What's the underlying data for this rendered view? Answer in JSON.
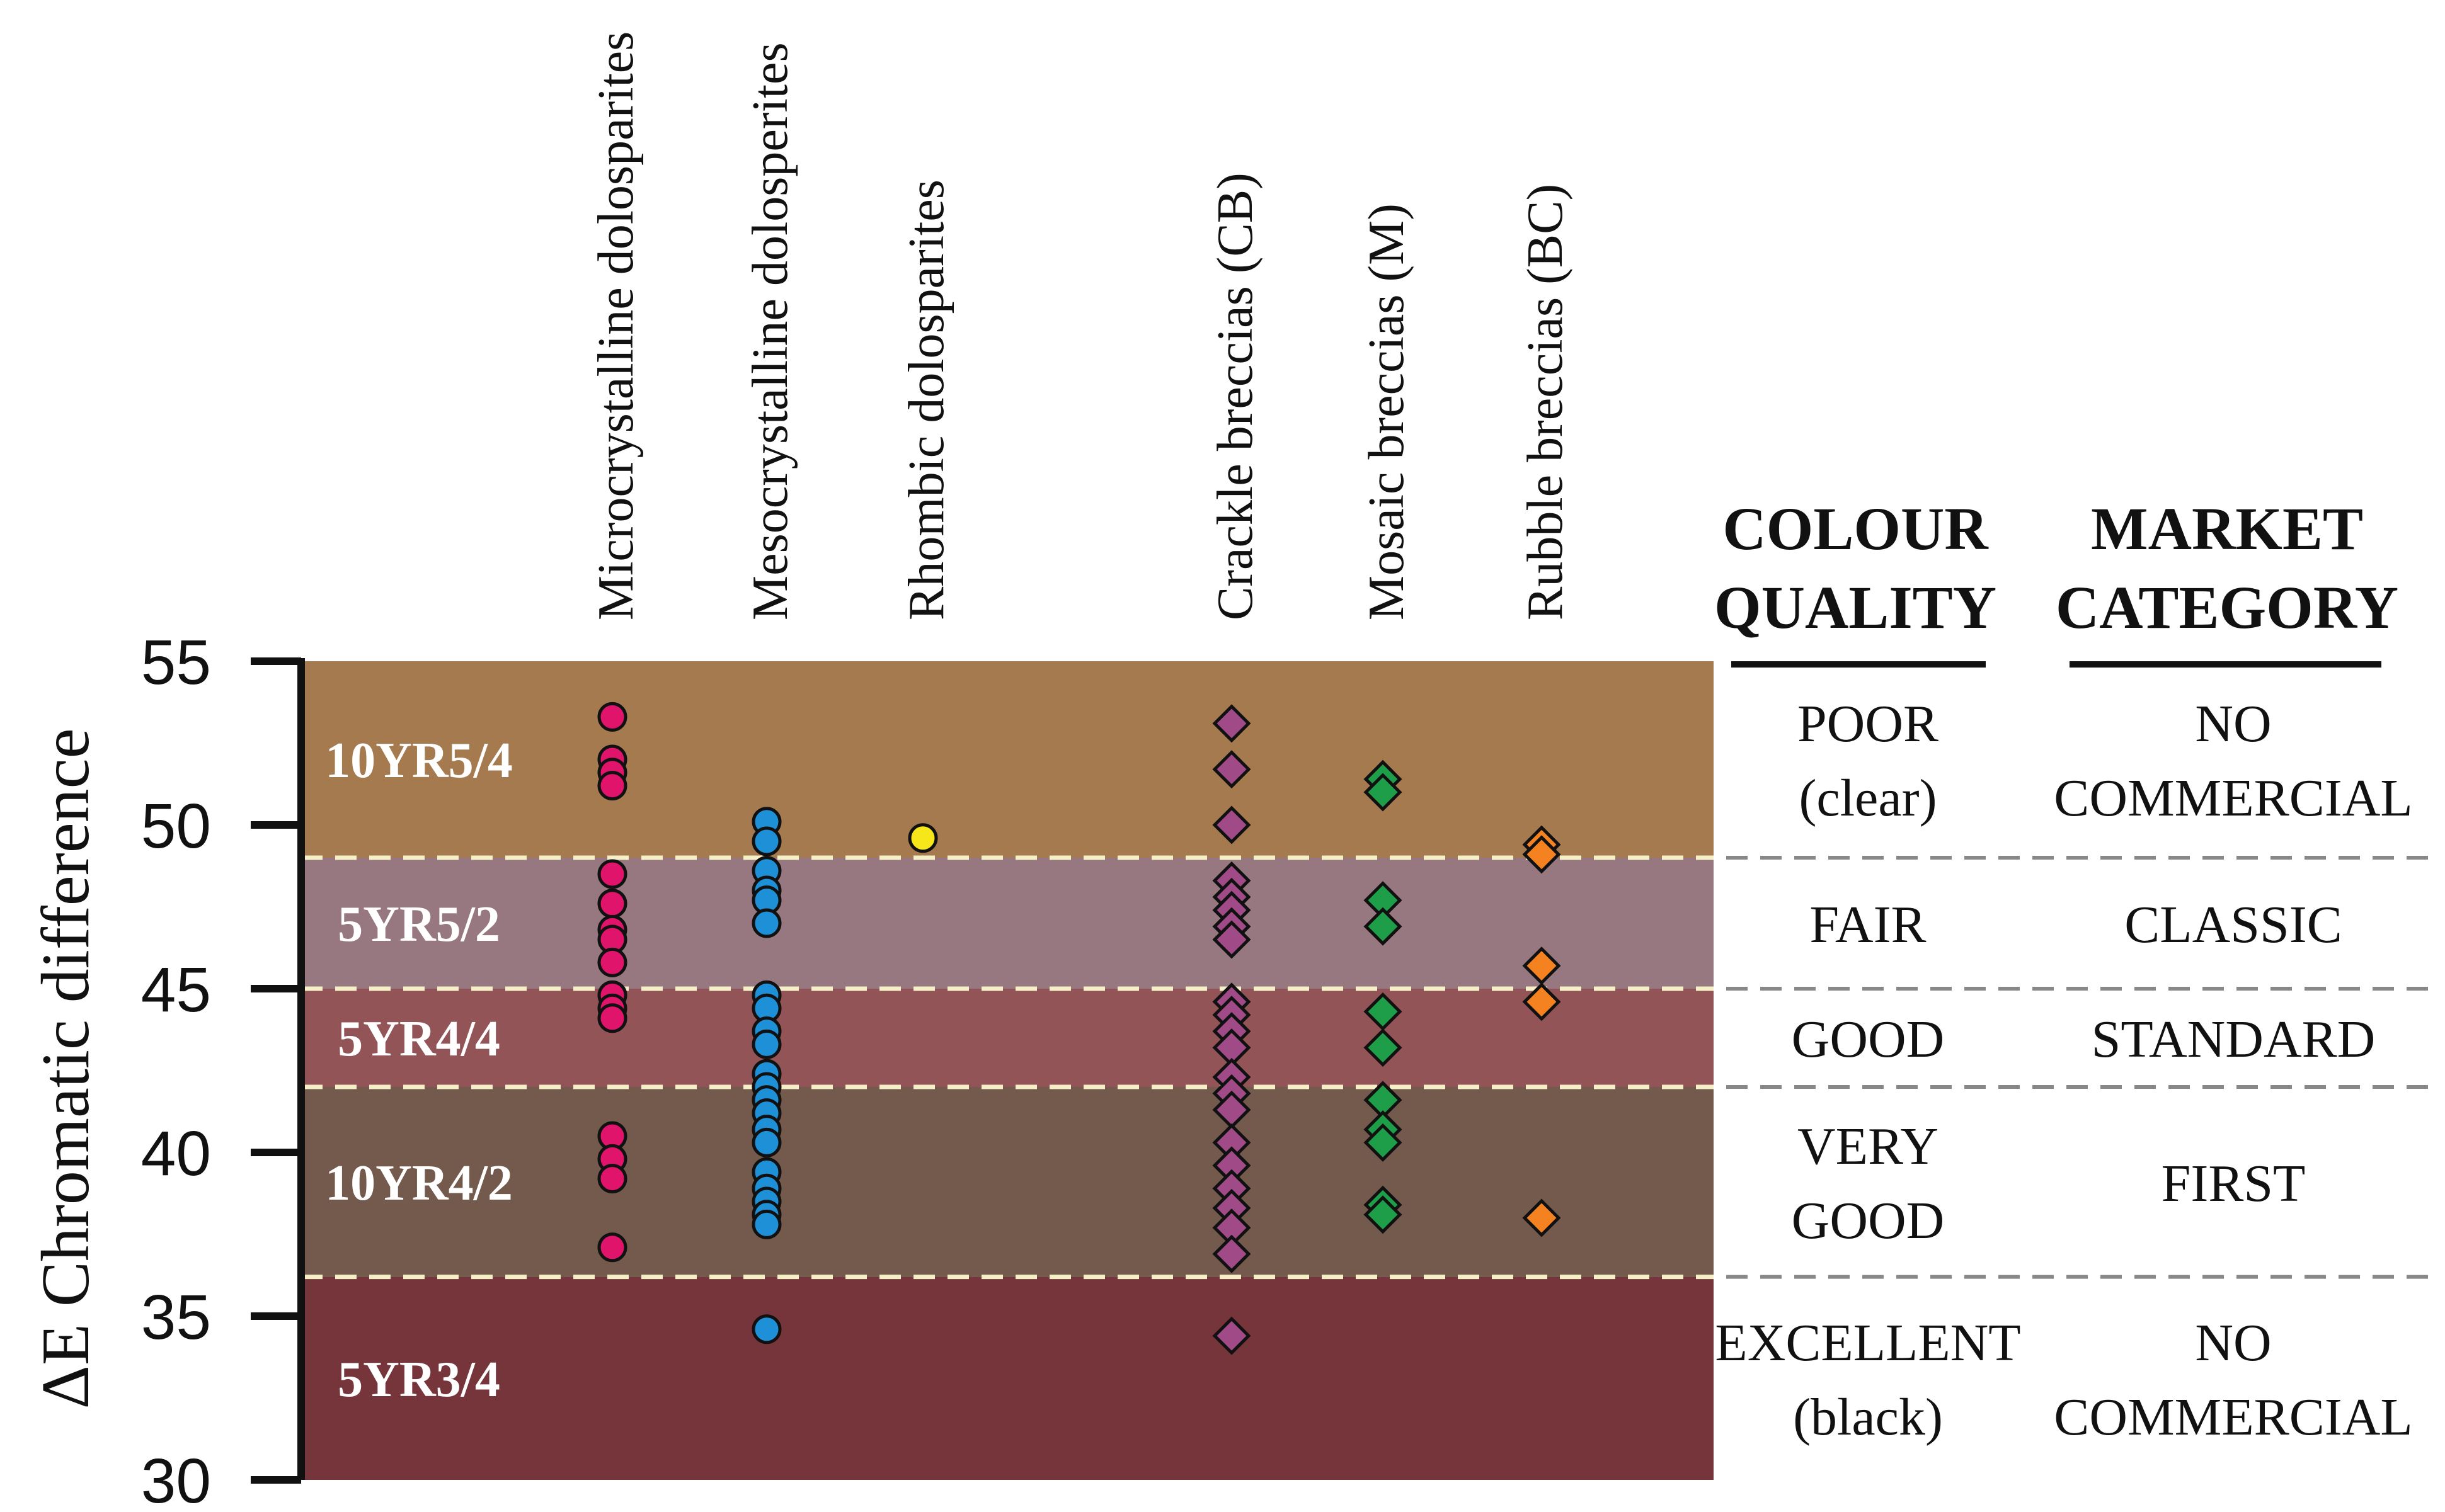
{
  "chart_data": {
    "type": "scatter",
    "ylabel": "ΔE  Chromatic difference",
    "ylim": [
      30,
      55
    ],
    "yticks": [
      "30",
      "35",
      "40",
      "45",
      "50",
      "55"
    ],
    "bands": [
      {
        "label": "10YR5/4",
        "from": 49,
        "to": 55,
        "color": "#a57a4f",
        "quality": [
          "POOR",
          "(clear)"
        ],
        "market": [
          "NO",
          "COMMERCIAL"
        ]
      },
      {
        "label": "5YR5/2",
        "from": 45,
        "to": 49,
        "color": "#987880",
        "quality": [
          "FAIR"
        ],
        "market": [
          "CLASSIC"
        ]
      },
      {
        "label": "5YR4/4",
        "from": 42,
        "to": 45,
        "color": "#935457",
        "quality": [
          "GOOD"
        ],
        "market": [
          "STANDARD"
        ]
      },
      {
        "label": "10YR4/2",
        "from": 36.2,
        "to": 42,
        "color": "#745a4c",
        "quality": [
          "VERY",
          "GOOD"
        ],
        "market": [
          "FIRST"
        ]
      },
      {
        "label": "5YR3/4",
        "from": 30,
        "to": 36.2,
        "color": "#76353b",
        "quality": [
          "EXCELLENT",
          "(black)"
        ],
        "market": [
          "NO",
          "COMMERCIAL"
        ]
      }
    ],
    "quality_header": [
      "COLOUR",
      "QUALITY"
    ],
    "market_header": [
      "MARKET",
      "CATEGORY"
    ],
    "series": [
      {
        "name": "Microcrystalline dolosparites",
        "marker": "circle",
        "color": "#e0146a",
        "values": [
          53.3,
          52.0,
          51.6,
          51.2,
          48.5,
          47.6,
          46.8,
          46.5,
          45.8,
          44.8,
          44.4,
          44.1,
          40.5,
          39.8,
          39.2,
          37.1
        ]
      },
      {
        "name": "Mesocrystalline dolosperites",
        "marker": "circle",
        "color": "#1e90d8",
        "values": [
          50.1,
          49.5,
          48.6,
          48.0,
          47.7,
          47.0,
          44.8,
          44.4,
          43.7,
          43.3,
          42.4,
          42.0,
          41.6,
          41.2,
          40.7,
          40.3,
          39.4,
          38.9,
          38.5,
          38.1,
          37.8,
          34.6
        ]
      },
      {
        "name": "Rhombic dolosparites",
        "marker": "circle",
        "color": "#f6e71b",
        "values": [
          49.6
        ]
      },
      {
        "name": "Crackle breccias (CB)",
        "marker": "diamond",
        "color": "#a04b88",
        "values": [
          53.1,
          51.7,
          50.0,
          48.3,
          47.8,
          47.4,
          46.9,
          46.5,
          44.6,
          44.2,
          43.7,
          43.2,
          42.3,
          41.8,
          41.3,
          40.3,
          39.6,
          38.9,
          38.3,
          37.7,
          36.9,
          34.4
        ]
      },
      {
        "name": "Mosaic breccias (M)",
        "marker": "diamond",
        "color": "#1e9e48",
        "values": [
          51.4,
          51.0,
          47.7,
          46.9,
          44.3,
          43.2,
          41.6,
          40.7,
          40.3,
          38.4,
          38.1
        ]
      },
      {
        "name": "Rubble breccias (BC)",
        "marker": "diamond",
        "color": "#f58220",
        "values": [
          49.4,
          49.1,
          45.7,
          44.6,
          38.0
        ]
      }
    ]
  }
}
